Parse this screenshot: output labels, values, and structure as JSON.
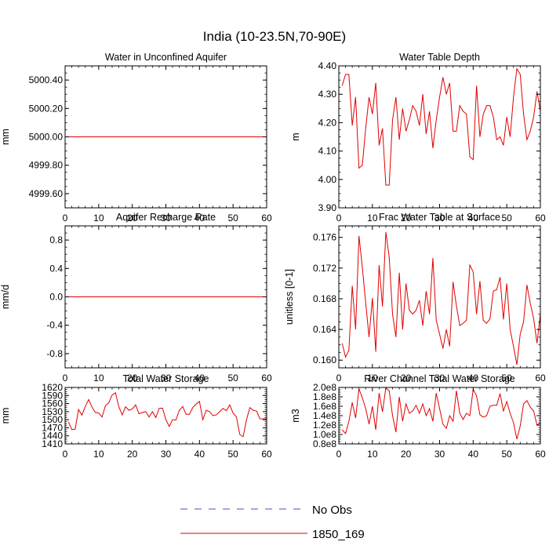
{
  "figure": {
    "title": "India (10-23.5N,70-90E)"
  },
  "legend": {
    "items": [
      {
        "label": "No Obs",
        "color": "#4b4bd6",
        "dash": true
      },
      {
        "label": "1850_169",
        "color": "#e00000",
        "dash": false
      }
    ]
  },
  "chart_data": [
    {
      "id": "water-in-unconfined-aquifer",
      "type": "line",
      "title": "Water in Unconfined Aquifer",
      "ylabel": "mm",
      "xlim": [
        0,
        60
      ],
      "ylim": [
        4999.5,
        5000.5
      ],
      "xticks": [
        0,
        10,
        20,
        30,
        40,
        50,
        60
      ],
      "yticks": [
        4999.6,
        4999.8,
        5000.0,
        5000.2,
        5000.4
      ],
      "ytick_labels": [
        "4999.60",
        "4999.80",
        "5000.00",
        "5000.20",
        "5000.40"
      ],
      "series": [
        {
          "color": "#e00000",
          "x": [
            1,
            60
          ],
          "y": [
            5000.0,
            5000.0
          ]
        }
      ]
    },
    {
      "id": "water-table-depth",
      "type": "line",
      "title": "Water Table Depth",
      "ylabel": "m",
      "xlim": [
        0,
        60
      ],
      "ylim": [
        3.9,
        4.4
      ],
      "xticks": [
        0,
        10,
        20,
        30,
        40,
        50,
        60
      ],
      "yticks": [
        3.9,
        4.0,
        4.1,
        4.2,
        4.3,
        4.4
      ],
      "ytick_labels": [
        "3.90",
        "4.00",
        "4.10",
        "4.20",
        "4.30",
        "4.40"
      ],
      "series": [
        {
          "color": "#e00000",
          "x": [
            1,
            2,
            3,
            4,
            5,
            6,
            7,
            8,
            9,
            10,
            11,
            12,
            13,
            14,
            15,
            16,
            17,
            18,
            19,
            20,
            21,
            22,
            23,
            24,
            25,
            26,
            27,
            28,
            29,
            30,
            31,
            32,
            33,
            34,
            35,
            36,
            37,
            38,
            39,
            40,
            41,
            42,
            43,
            44,
            45,
            46,
            47,
            48,
            49,
            50,
            51,
            52,
            53,
            54,
            55,
            56,
            57,
            58,
            59,
            60
          ],
          "y": [
            4.33,
            4.37,
            4.37,
            4.19,
            4.29,
            4.04,
            4.05,
            4.18,
            4.29,
            4.23,
            4.34,
            4.12,
            4.18,
            3.98,
            3.98,
            4.21,
            4.29,
            4.14,
            4.25,
            4.17,
            4.21,
            4.26,
            4.24,
            4.19,
            4.3,
            4.16,
            4.24,
            4.11,
            4.21,
            4.29,
            4.36,
            4.3,
            4.34,
            4.17,
            4.17,
            4.26,
            4.24,
            4.23,
            4.08,
            4.07,
            4.33,
            4.15,
            4.23,
            4.26,
            4.26,
            4.22,
            4.14,
            4.15,
            4.12,
            4.22,
            4.15,
            4.29,
            4.39,
            4.37,
            4.23,
            4.14,
            4.17,
            4.22,
            4.31,
            4.24
          ]
        }
      ]
    },
    {
      "id": "aquifer-recharge-rate",
      "type": "line",
      "title": "Aquifer Recharge Rate",
      "ylabel": "mm/d",
      "xlim": [
        0,
        60
      ],
      "ylim": [
        -1.0,
        1.0
      ],
      "xticks": [
        0,
        10,
        20,
        30,
        40,
        50,
        60
      ],
      "yticks": [
        -0.8,
        -0.4,
        0.0,
        0.4,
        0.8
      ],
      "ytick_labels": [
        "-0.8",
        "-0.4",
        "0.0",
        "0.4",
        "0.8"
      ],
      "series": [
        {
          "color": "#e00000",
          "x": [
            1,
            60
          ],
          "y": [
            0.0,
            0.0
          ]
        }
      ]
    },
    {
      "id": "frac-water-table-at-surface",
      "type": "line",
      "title": "Frac Water Table at Surface",
      "ylabel": "unitless [0-1]",
      "xlim": [
        0,
        60
      ],
      "ylim": [
        0.159,
        0.1775
      ],
      "xticks": [
        0,
        10,
        20,
        30,
        40,
        50,
        60
      ],
      "yticks": [
        0.16,
        0.164,
        0.168,
        0.172,
        0.176
      ],
      "ytick_labels": [
        "0.160",
        "0.164",
        "0.168",
        "0.172",
        "0.176"
      ],
      "series": [
        {
          "color": "#e00000",
          "x": [
            1,
            2,
            3,
            4,
            5,
            6,
            7,
            8,
            9,
            10,
            11,
            12,
            13,
            14,
            15,
            16,
            17,
            18,
            19,
            20,
            21,
            22,
            23,
            24,
            25,
            26,
            27,
            28,
            29,
            30,
            31,
            32,
            33,
            34,
            35,
            36,
            37,
            38,
            39,
            40,
            41,
            42,
            43,
            44,
            45,
            46,
            47,
            48,
            49,
            50,
            51,
            52,
            53,
            54,
            55,
            56,
            57,
            58,
            59,
            60
          ],
          "y": [
            0.1622,
            0.1604,
            0.1613,
            0.1697,
            0.164,
            0.1762,
            0.1721,
            0.1675,
            0.163,
            0.1681,
            0.1611,
            0.1724,
            0.167,
            0.1767,
            0.1734,
            0.166,
            0.163,
            0.1714,
            0.164,
            0.17,
            0.1665,
            0.166,
            0.1665,
            0.1678,
            0.1645,
            0.169,
            0.166,
            0.1733,
            0.1652,
            0.1634,
            0.1615,
            0.164,
            0.1618,
            0.1702,
            0.1671,
            0.1645,
            0.1648,
            0.1652,
            0.1724,
            0.1715,
            0.166,
            0.1703,
            0.1652,
            0.1648,
            0.1654,
            0.169,
            0.1692,
            0.1708,
            0.1653,
            0.17,
            0.164,
            0.1618,
            0.1594,
            0.1634,
            0.165,
            0.1698,
            0.1674,
            0.1654,
            0.1622,
            0.166
          ]
        }
      ]
    },
    {
      "id": "total-water-storage",
      "type": "line",
      "title": "Total Water Storage",
      "ylabel": "mm",
      "xlim": [
        0,
        60
      ],
      "ylim": [
        1410,
        1620
      ],
      "xticks": [
        0,
        10,
        20,
        30,
        40,
        50,
        60
      ],
      "yticks": [
        1410,
        1440,
        1470,
        1500,
        1530,
        1560,
        1590,
        1620
      ],
      "ytick_labels": [
        "1410",
        "1440",
        "1470",
        "1500",
        "1530",
        "1560",
        "1590",
        "1620"
      ],
      "series": [
        {
          "color": "#e00000",
          "x": [
            1,
            2,
            3,
            4,
            5,
            6,
            7,
            8,
            9,
            10,
            11,
            12,
            13,
            14,
            15,
            16,
            17,
            18,
            19,
            20,
            21,
            22,
            23,
            24,
            25,
            26,
            27,
            28,
            29,
            30,
            31,
            32,
            33,
            34,
            35,
            36,
            37,
            38,
            39,
            40,
            41,
            42,
            43,
            44,
            45,
            46,
            47,
            48,
            49,
            50,
            51,
            52,
            53,
            54,
            55,
            56,
            57,
            58,
            59,
            60
          ],
          "y": [
            1492,
            1463,
            1465,
            1538,
            1517,
            1549,
            1575,
            1547,
            1527,
            1525,
            1510,
            1552,
            1563,
            1592,
            1600,
            1548,
            1518,
            1548,
            1535,
            1540,
            1555,
            1522,
            1527,
            1530,
            1510,
            1530,
            1508,
            1542,
            1543,
            1500,
            1475,
            1500,
            1499,
            1535,
            1549,
            1520,
            1520,
            1545,
            1558,
            1568,
            1500,
            1535,
            1530,
            1515,
            1518,
            1530,
            1542,
            1534,
            1555,
            1525,
            1510,
            1445,
            1437,
            1500,
            1545,
            1535,
            1532,
            1503,
            1503,
            1503
          ]
        }
      ]
    },
    {
      "id": "river-channel-total-water-storage",
      "type": "line",
      "title": "River Channel Total Water Storage",
      "ylabel": "m3",
      "xlim": [
        0,
        60
      ],
      "ylim": [
        80000000.0,
        200000000.0
      ],
      "xticks": [
        0,
        10,
        20,
        30,
        40,
        50,
        60
      ],
      "yticks": [
        80000000.0,
        100000000.0,
        120000000.0,
        140000000.0,
        160000000.0,
        180000000.0,
        200000000.0
      ],
      "ytick_labels": [
        "0.8e8",
        "1.0e8",
        "1.2e8",
        "1.4e8",
        "1.6e8",
        "1.8e8",
        "2.0e8"
      ],
      "series": [
        {
          "color": "#e00000",
          "x": [
            1,
            2,
            3,
            4,
            5,
            6,
            7,
            8,
            9,
            10,
            11,
            12,
            13,
            14,
            15,
            16,
            17,
            18,
            19,
            20,
            21,
            22,
            23,
            24,
            25,
            26,
            27,
            28,
            29,
            30,
            31,
            32,
            33,
            34,
            35,
            36,
            37,
            38,
            39,
            40,
            41,
            42,
            43,
            44,
            45,
            46,
            47,
            48,
            49,
            50,
            51,
            52,
            53,
            54,
            55,
            56,
            57,
            58,
            59,
            60
          ],
          "y": [
            110000000.0,
            102000000.0,
            128000000.0,
            168000000.0,
            135000000.0,
            197000000.0,
            178000000.0,
            155000000.0,
            122000000.0,
            160000000.0,
            110000000.0,
            188000000.0,
            148000000.0,
            199000000.0,
            193000000.0,
            140000000.0,
            105000000.0,
            180000000.0,
            128000000.0,
            165000000.0,
            145000000.0,
            150000000.0,
            162000000.0,
            145000000.0,
            165000000.0,
            140000000.0,
            155000000.0,
            128000000.0,
            188000000.0,
            155000000.0,
            122000000.0,
            113000000.0,
            140000000.0,
            128000000.0,
            193000000.0,
            145000000.0,
            132000000.0,
            145000000.0,
            140000000.0,
            196000000.0,
            182000000.0,
            142000000.0,
            137000000.0,
            140000000.0,
            160000000.0,
            162000000.0,
            162000000.0,
            187000000.0,
            150000000.0,
            170000000.0,
            145000000.0,
            125000000.0,
            90000000.0,
            118000000.0,
            165000000.0,
            172000000.0,
            158000000.0,
            150000000.0,
            120000000.0,
            125000000.0
          ]
        }
      ]
    }
  ]
}
